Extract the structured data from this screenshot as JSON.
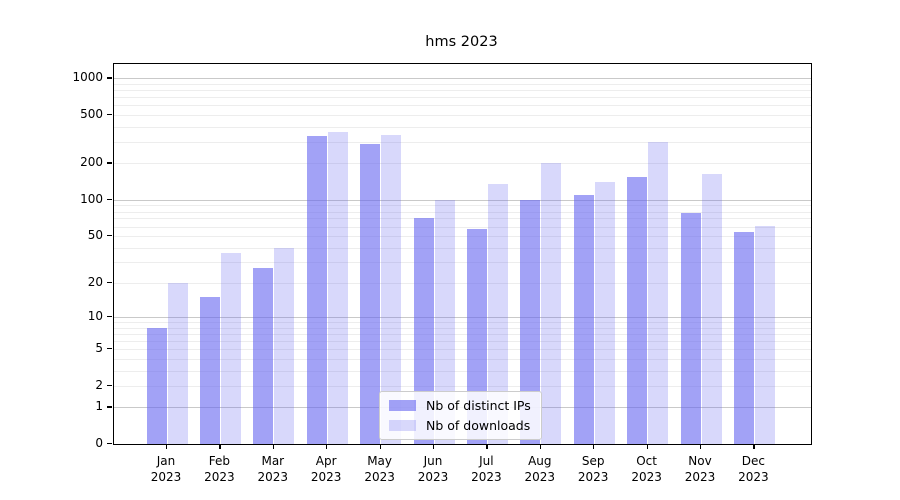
{
  "figure": {
    "title": "hms 2023"
  },
  "colors": {
    "bar_base": "#6464f0",
    "ips_fill": "rgba(100,100,240,0.6)",
    "downloads_fill": "rgba(100,100,240,0.25)",
    "grid_major": "#c9c9c9",
    "grid_minor": "#ededed",
    "axis": "#000000",
    "legend_border": "#cccccc"
  },
  "chart_data": {
    "type": "bar",
    "title": "hms 2023",
    "categories": [
      "Jan 2023",
      "Feb 2023",
      "Mar 2023",
      "Apr 2023",
      "May 2023",
      "Jun 2023",
      "Jul 2023",
      "Aug 2023",
      "Sep 2023",
      "Oct 2023",
      "Nov 2023",
      "Dec 2023"
    ],
    "series": [
      {
        "name": "Nb of distinct IPs",
        "color": "#6464f0",
        "alpha": 0.6,
        "values": [
          8,
          15,
          27,
          337,
          290,
          71,
          57,
          100,
          110,
          155,
          78,
          54
        ]
      },
      {
        "name": "Nb of downloads",
        "color": "#6464f0",
        "alpha": 0.25,
        "values": [
          20,
          36,
          40,
          362,
          340,
          100,
          135,
          200,
          140,
          300,
          165,
          61
        ]
      }
    ],
    "xlabel": "",
    "ylabel": "",
    "yscale": "log1p",
    "yticks": [
      0,
      1,
      2,
      5,
      10,
      20,
      50,
      100,
      200,
      500,
      1000
    ],
    "ytick_major": [
      1,
      10,
      100,
      1000
    ],
    "ylim": [
      0,
      1315
    ],
    "grid": "both",
    "legend_position": "lower-center"
  }
}
